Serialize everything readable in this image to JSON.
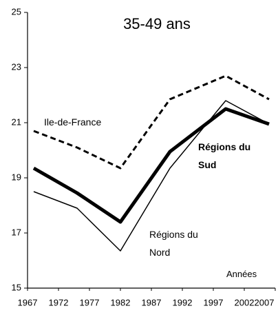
{
  "chart_data": {
    "type": "line",
    "title": "35-49 ans",
    "xlabel": "Années",
    "x": [
      1968,
      1975,
      1982,
      1990,
      1999,
      2006
    ],
    "series": [
      {
        "name": "Ile-de-France",
        "color": "#000000",
        "style": "dashed",
        "values": [
          20.7,
          20.1,
          19.35,
          21.85,
          22.7,
          21.85
        ]
      },
      {
        "name": "Régions du Sud",
        "color": "#000000",
        "style": "thick",
        "values": [
          19.35,
          18.45,
          17.4,
          19.95,
          21.5,
          20.95
        ]
      },
      {
        "name": "Régions du Nord",
        "color": "#000000",
        "style": "thin",
        "values": [
          18.5,
          17.9,
          16.35,
          19.35,
          21.8,
          20.95
        ]
      }
    ],
    "xlim": [
      1967,
      2007
    ],
    "xticks": [
      1967,
      1972,
      1977,
      1982,
      1987,
      1992,
      1997,
      2002,
      2007
    ],
    "ylim": [
      15,
      25
    ],
    "yticks": [
      15,
      17,
      19,
      21,
      23,
      25
    ],
    "grid": false
  }
}
